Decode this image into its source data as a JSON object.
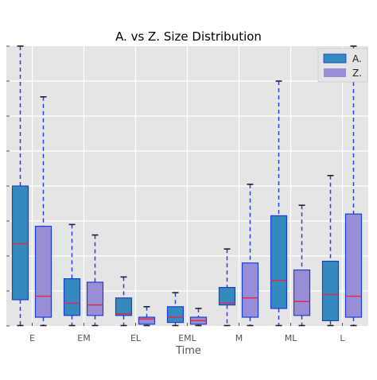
{
  "chart_data": {
    "type": "box",
    "title": "A. vs Z. Size Distribution",
    "xlabel": "Time",
    "ylabel": "",
    "ylim": [
      0,
      8
    ],
    "grid": true,
    "legend_position": "top-right",
    "categories": [
      "E",
      "EM",
      "EL",
      "EML",
      "M",
      "ML",
      "L"
    ],
    "colors": {
      "background": "#e5e5e5",
      "grid": "#ffffff",
      "A.": "#348abd",
      "Z.": "#988ed5",
      "box_edge": "#1a3fd1",
      "whisker": "#2a3de0",
      "median": "#e2294d",
      "cap": "#222222"
    },
    "series": [
      {
        "name": "A.",
        "boxes": [
          {
            "category": "E",
            "min": 0,
            "q1": 0.75,
            "median": 2.35,
            "q3": 4.0,
            "max": 8.0
          },
          {
            "category": "EM",
            "min": 0,
            "q1": 0.3,
            "median": 0.65,
            "q3": 1.35,
            "max": 2.9
          },
          {
            "category": "EL",
            "min": 0,
            "q1": 0.3,
            "median": 0.35,
            "q3": 0.8,
            "max": 1.4
          },
          {
            "category": "EML",
            "min": 0,
            "q1": 0.1,
            "median": 0.25,
            "q3": 0.55,
            "max": 0.95
          },
          {
            "category": "M",
            "min": 0,
            "q1": 0.6,
            "median": 0.65,
            "q3": 1.1,
            "max": 2.2
          },
          {
            "category": "ML",
            "min": 0,
            "q1": 0.5,
            "median": 1.3,
            "q3": 3.15,
            "max": 7.0
          },
          {
            "category": "L",
            "min": 0,
            "q1": 0.15,
            "median": 0.9,
            "q3": 1.85,
            "max": 4.3
          }
        ]
      },
      {
        "name": "Z.",
        "boxes": [
          {
            "category": "E",
            "min": 0,
            "q1": 0.25,
            "median": 0.85,
            "q3": 2.85,
            "max": 6.55
          },
          {
            "category": "EM",
            "min": 0,
            "q1": 0.3,
            "median": 0.6,
            "q3": 1.25,
            "max": 2.6
          },
          {
            "category": "EL",
            "min": 0,
            "q1": 0.05,
            "median": 0.2,
            "q3": 0.25,
            "max": 0.55
          },
          {
            "category": "EML",
            "min": 0,
            "q1": 0.05,
            "median": 0.15,
            "q3": 0.25,
            "max": 0.5
          },
          {
            "category": "M",
            "min": 0,
            "q1": 0.25,
            "median": 0.8,
            "q3": 1.8,
            "max": 4.05
          },
          {
            "category": "ML",
            "min": 0,
            "q1": 0.3,
            "median": 0.7,
            "q3": 1.6,
            "max": 3.45
          },
          {
            "category": "L",
            "min": 0,
            "q1": 0.25,
            "median": 0.85,
            "q3": 3.2,
            "max": 8.0
          }
        ]
      }
    ]
  }
}
